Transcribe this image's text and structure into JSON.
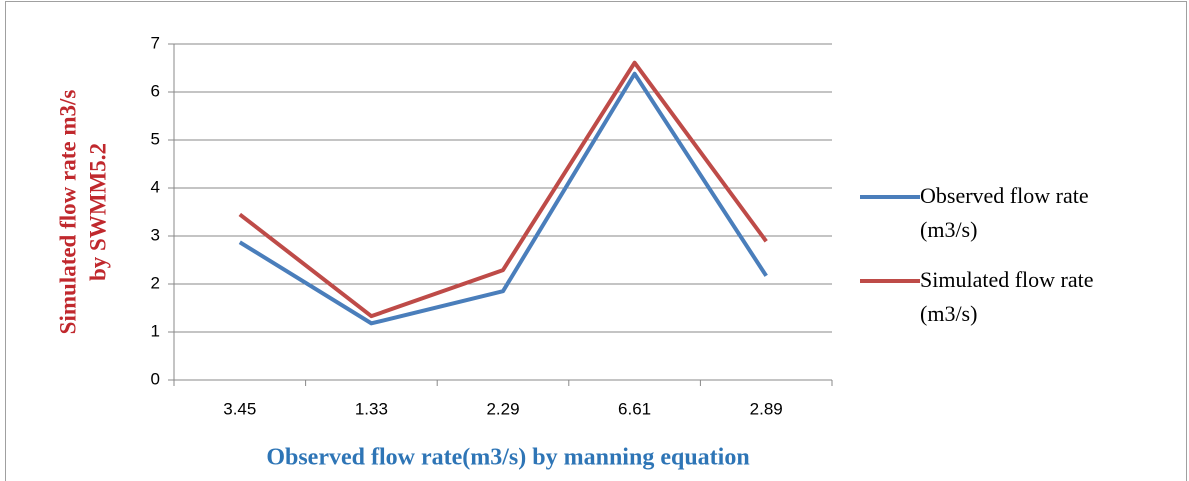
{
  "chart_data": {
    "type": "line",
    "y_label": [
      "Simulated flow rate m3/s",
      "by SWMM5.2"
    ],
    "x_label": "Observed flow rate(m3/s) by manning equation",
    "categories": [
      "3.45",
      "1.33",
      "2.29",
      "6.61",
      "2.89"
    ],
    "series": [
      {
        "name": "Observed flow rate (m3/s)",
        "color": "#4a7ebb",
        "values": [
          2.87,
          1.18,
          1.85,
          6.38,
          2.17
        ]
      },
      {
        "name": "Simulated flow rate (m3/s)",
        "color": "#be4b48",
        "values": [
          3.45,
          1.33,
          2.29,
          6.61,
          2.89
        ]
      }
    ],
    "ylim": [
      0,
      7
    ],
    "yticks": [
      0,
      1,
      2,
      3,
      4,
      5,
      6,
      7
    ],
    "grid": true,
    "legend": "right"
  }
}
